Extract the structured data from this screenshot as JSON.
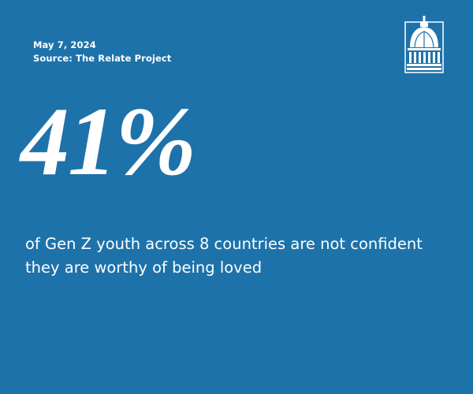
{
  "date": "May 7, 2024",
  "source": "Source: The Relate Project",
  "stat": "41%",
  "description": "of Gen Z youth across 8 countries are not confident they are worthy of being loved"
}
